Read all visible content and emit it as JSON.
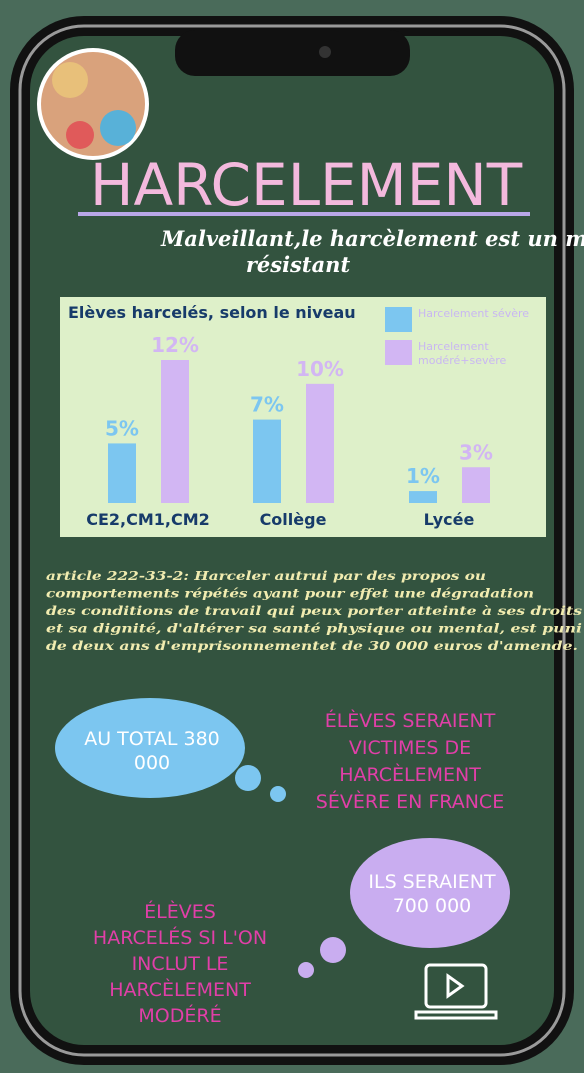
{
  "header": {
    "title": "HARCELEMENT",
    "subtitle_lines": [
      "Malveillant,le harcèlement est un mal",
      "résistant"
    ]
  },
  "chart_data": {
    "type": "bar",
    "title": "Elèves harcelés, selon le niveau",
    "categories": [
      "CE2,CM1,CM2",
      "Collège",
      "Lycée"
    ],
    "series": [
      {
        "name": "Harcelement sévère",
        "color": "#7cc6f0",
        "values": [
          5,
          7,
          1
        ],
        "value_labels": [
          "5%",
          "7%",
          "1%"
        ]
      },
      {
        "name": "Harcelement modéré+sevère",
        "color": "#d2b6f3",
        "values": [
          12,
          10,
          3
        ],
        "value_labels": [
          "12%",
          "10%",
          "3%"
        ]
      }
    ]
  },
  "article_lines": [
    "article 222-33-2: Harceler autrui par des propos ou",
    "comportements répétés ayant  pour effet une dégradation",
    "des conditions de travail qui peux porter atteinte à ses droits",
    "et sa dignité, d'altérer sa santé physique ou mental,  est puni",
    "de deux ans d'emprisonnementet de 30 000 euros d'amende."
  ],
  "bubble_1": [
    "AU TOTAL 380",
    "000"
  ],
  "caption_1": [
    "ÉLÈVES SERAIENT",
    "VICTIMES DE",
    "HARCÈLEMENT",
    "SÉVÈRE EN FRANCE"
  ],
  "bubble_2": [
    "ILS SERAIENT",
    "700 000"
  ],
  "caption_2": [
    "ÉLÈVES",
    "HARCELÉS SI L'ON",
    "INCLUT LE",
    "HARCÈLEMENT",
    "MODÉRÉ"
  ]
}
